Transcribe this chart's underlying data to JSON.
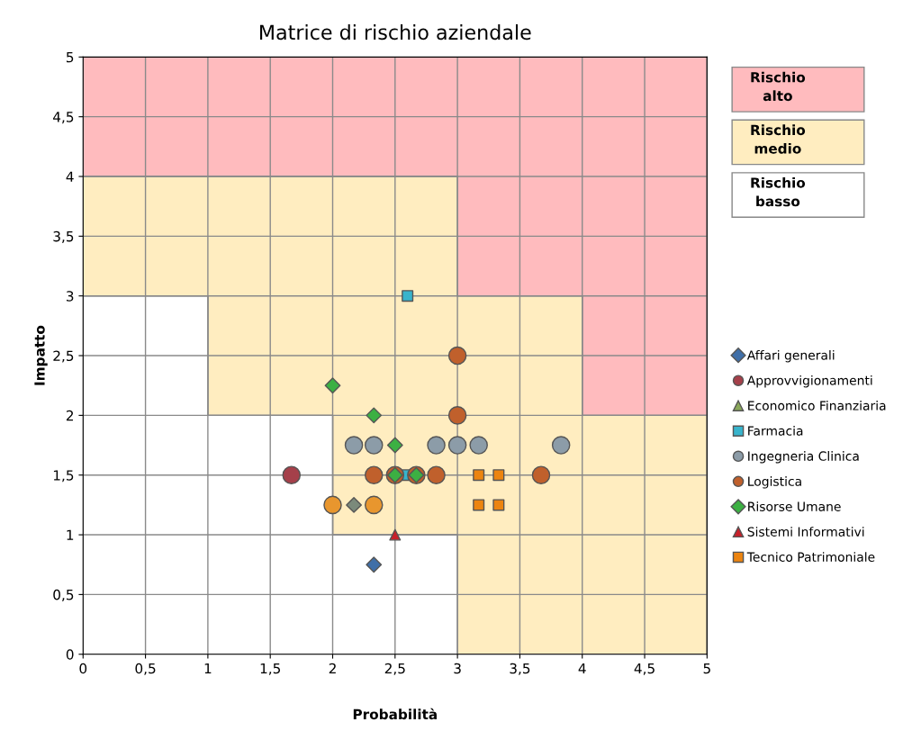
{
  "chart_data": {
    "type": "scatter",
    "title": "Matrice di rischio aziendale",
    "xlabel": "Probabilità",
    "ylabel": "Impatto",
    "xlim": [
      0,
      5
    ],
    "ylim": [
      0,
      5
    ],
    "xticks": [
      0,
      {
        "value": 0.5,
        "label": "0,5"
      },
      1,
      {
        "value": 1.5,
        "label": "1,5"
      },
      2,
      {
        "value": 2.5,
        "label": "2,5"
      },
      3,
      {
        "value": 3.5,
        "label": "3,5"
      },
      4,
      {
        "value": 4.5,
        "label": "4,5"
      },
      5
    ],
    "yticks": [
      0,
      {
        "value": 0.5,
        "label": "0,5"
      },
      1,
      {
        "value": 1.5,
        "label": "1,5"
      },
      2,
      {
        "value": 2.5,
        "label": "2,5"
      },
      3,
      {
        "value": 3.5,
        "label": "3,5"
      },
      4,
      {
        "value": 4.5,
        "label": "4,5"
      },
      5
    ],
    "grid": true,
    "legend": "right",
    "series": [
      {
        "type": "area",
        "name": "Rischio alto",
        "color": "#ffbbbe",
        "x": [
          0,
          1,
          1,
          2,
          2,
          3,
          3,
          4,
          4,
          5
        ],
        "values": [
          5,
          5,
          5,
          5,
          5,
          5,
          5,
          5,
          5,
          5
        ]
      },
      {
        "type": "area",
        "name": "Rischio medio",
        "color": "#ffedc0",
        "x": [
          0,
          1,
          1,
          2,
          2,
          3,
          3,
          4,
          4,
          5
        ],
        "values": [
          4,
          4,
          4,
          4,
          4,
          4,
          3,
          3,
          2,
          2
        ]
      },
      {
        "type": "area",
        "name": "Rischio basso",
        "color": "#ffffff",
        "x": [
          0,
          1,
          1,
          2,
          2,
          3,
          3,
          4,
          4,
          5
        ],
        "values": [
          3,
          3,
          2,
          2,
          1,
          1,
          0,
          0,
          0,
          0
        ]
      },
      {
        "name": "Affari generali",
        "color": "#3f6fa8",
        "marker": "diamond",
        "x": [
          2.33,
          2.17
        ],
        "values": [
          0.75,
          1.25
        ],
        "colors": [
          "#3f6fa8",
          "#7b8a7b"
        ]
      },
      {
        "name": "Approvvigionamenti",
        "color": "#a5404a",
        "marker": "circle",
        "x": [
          1.67
        ],
        "values": [
          1.5
        ]
      },
      {
        "name": "Economico Finanziaria",
        "color": "#8aa85a",
        "marker": "triangle"
      },
      {
        "name": "Farmacia",
        "color": "#38b4cc",
        "marker": "square",
        "x": [
          2.6,
          2.6
        ],
        "values": [
          3.0,
          1.5
        ]
      },
      {
        "name": "Ingegneria Clinica",
        "color": "#8c9ca8",
        "marker": "circle",
        "x": [
          2.17,
          2.33,
          2.83,
          3.0,
          3.17,
          3.83
        ],
        "values": [
          1.75,
          1.75,
          1.75,
          1.75,
          1.75,
          1.75
        ]
      },
      {
        "name": "Logistica",
        "color": "#c0602c",
        "marker": "circle",
        "x": [
          3.0,
          3.0,
          2.33,
          2.5,
          2.67,
          2.83,
          3.67,
          2.0,
          2.33
        ],
        "values": [
          2.5,
          2.0,
          1.5,
          1.5,
          1.5,
          1.5,
          1.5,
          1.25,
          1.25
        ],
        "colors": [
          "#c0602c",
          "#c0602c",
          "#c0602c",
          "#c0602c",
          "#c0602c",
          "#c0602c",
          "#c0602c",
          "#e8962e",
          "#e8962e"
        ]
      },
      {
        "name": "Risorse Umane",
        "color": "#3cb043",
        "marker": "diamond",
        "x": [
          2.0,
          2.33,
          2.5,
          2.5,
          2.67
        ],
        "values": [
          2.25,
          2.0,
          1.75,
          1.5,
          1.5
        ]
      },
      {
        "name": "Sistemi Informativi",
        "color": "#c8202a",
        "marker": "triangle",
        "x": [
          2.5
        ],
        "values": [
          1.0
        ]
      },
      {
        "name": "Tecnico Patrimoniale",
        "color": "#ec8410",
        "marker": "square",
        "x": [
          3.17,
          3.33,
          3.17,
          3.33
        ],
        "values": [
          1.5,
          1.5,
          1.25,
          1.25
        ]
      }
    ]
  }
}
